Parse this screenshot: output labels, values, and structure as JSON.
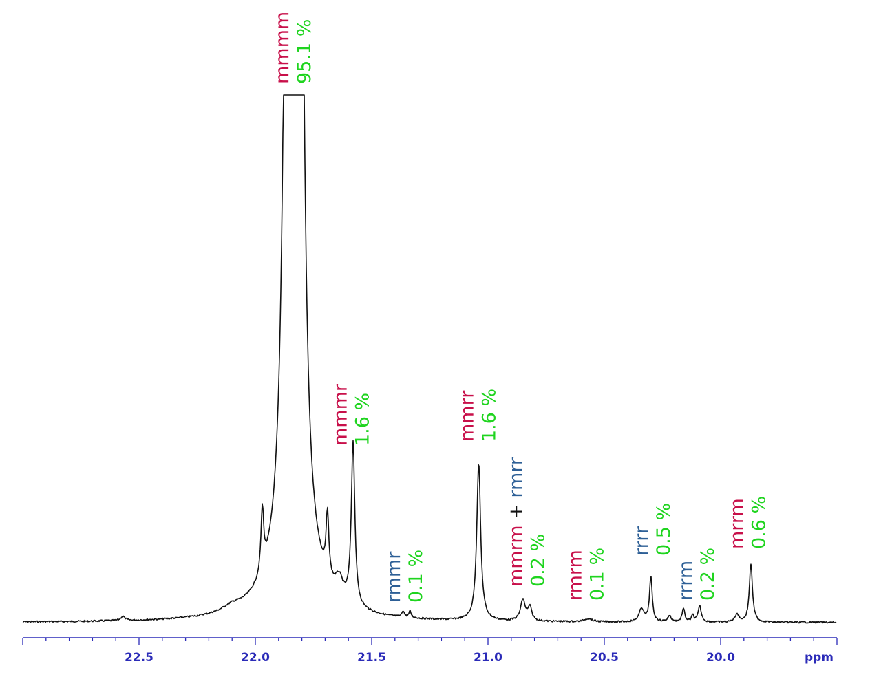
{
  "colors": {
    "meso": "#c8104a",
    "racemic": "#2d5f96",
    "percent": "#1fd41f",
    "plus": "#111111",
    "axis": "#2b2bb8",
    "trace": "#111111"
  },
  "chart_data": {
    "type": "line",
    "title": "",
    "xlabel": "ppm",
    "ylabel": "",
    "x_axis": {
      "domain": [
        23.0,
        19.5
      ],
      "reversed": true,
      "major_ticks": [
        22.5,
        22.0,
        21.5,
        21.0,
        20.5,
        20.0
      ],
      "tick_labels": [
        "22.5",
        "22.0",
        "21.5",
        "21.0",
        "20.5",
        "20.0"
      ],
      "minor_step": 0.1,
      "unit_label": "ppm"
    },
    "y_range": [
      0,
      1.0
    ],
    "grid": false,
    "legend": "none",
    "peaks": [
      {
        "x": 21.86,
        "height": 1.8,
        "width": 0.018
      },
      {
        "x": 21.81,
        "height": 1.8,
        "width": 0.018
      },
      {
        "x": 21.835,
        "height": 0.1,
        "width": 0.1
      },
      {
        "x": 21.97,
        "height": 0.12,
        "width": 0.007
      },
      {
        "x": 21.69,
        "height": 0.12,
        "width": 0.007
      },
      {
        "x": 21.58,
        "height": 0.31,
        "width": 0.009
      },
      {
        "x": 21.64,
        "height": 0.035,
        "width": 0.02
      },
      {
        "x": 21.365,
        "height": 0.012,
        "width": 0.006
      },
      {
        "x": 21.335,
        "height": 0.012,
        "width": 0.006
      },
      {
        "x": 21.04,
        "height": 0.3,
        "width": 0.01
      },
      {
        "x": 20.85,
        "height": 0.04,
        "width": 0.012
      },
      {
        "x": 20.82,
        "height": 0.025,
        "width": 0.01
      },
      {
        "x": 20.57,
        "height": 0.006,
        "width": 0.02
      },
      {
        "x": 20.34,
        "height": 0.025,
        "width": 0.012
      },
      {
        "x": 20.3,
        "height": 0.085,
        "width": 0.007
      },
      {
        "x": 20.22,
        "height": 0.012,
        "width": 0.008
      },
      {
        "x": 20.16,
        "height": 0.025,
        "width": 0.007
      },
      {
        "x": 20.12,
        "height": 0.012,
        "width": 0.006
      },
      {
        "x": 20.09,
        "height": 0.03,
        "width": 0.008
      },
      {
        "x": 19.93,
        "height": 0.015,
        "width": 0.01
      },
      {
        "x": 19.87,
        "height": 0.11,
        "width": 0.008
      },
      {
        "x": 22.57,
        "height": 0.008,
        "width": 0.01
      },
      {
        "x": 22.1,
        "height": 0.01,
        "width": 0.05
      }
    ],
    "annotations": [
      {
        "x": 21.835,
        "parts": [
          {
            "text": "mmmm",
            "kind": "meso"
          },
          {
            "text": "95.1 %",
            "kind": "percent"
          }
        ]
      },
      {
        "x": 21.585,
        "parts": [
          {
            "text": "mmmr",
            "kind": "meso"
          },
          {
            "text": "1.6 %",
            "kind": "percent"
          }
        ]
      },
      {
        "x": 21.355,
        "parts": [
          {
            "text": "rmmr",
            "kind": "racemic"
          },
          {
            "text": "0.1 %",
            "kind": "percent"
          }
        ]
      },
      {
        "x": 21.04,
        "parts": [
          {
            "text": "mmrr",
            "kind": "meso"
          },
          {
            "text": "1.6 %",
            "kind": "percent"
          }
        ]
      },
      {
        "x": 20.83,
        "parts": [
          {
            "text": "mmrm",
            "kind": "meso"
          },
          {
            "text": "+",
            "kind": "plus"
          },
          {
            "text": "rmrr",
            "kind": "racemic"
          },
          {
            "text": "0.2 %",
            "kind": "percent"
          }
        ]
      },
      {
        "x": 20.575,
        "parts": [
          {
            "text": "rmrm",
            "kind": "meso"
          },
          {
            "text": "0.1 %",
            "kind": "percent"
          }
        ]
      },
      {
        "x": 20.29,
        "parts": [
          {
            "text": "rrrr",
            "kind": "racemic"
          },
          {
            "text": "0.5 %",
            "kind": "percent"
          }
        ]
      },
      {
        "x": 20.1,
        "parts": [
          {
            "text": "rrrm",
            "kind": "racemic"
          },
          {
            "text": "0.2 %",
            "kind": "percent"
          }
        ]
      },
      {
        "x": 19.88,
        "parts": [
          {
            "text": "mrrm",
            "kind": "meso"
          },
          {
            "text": "0.6 %",
            "kind": "percent"
          }
        ]
      }
    ]
  }
}
